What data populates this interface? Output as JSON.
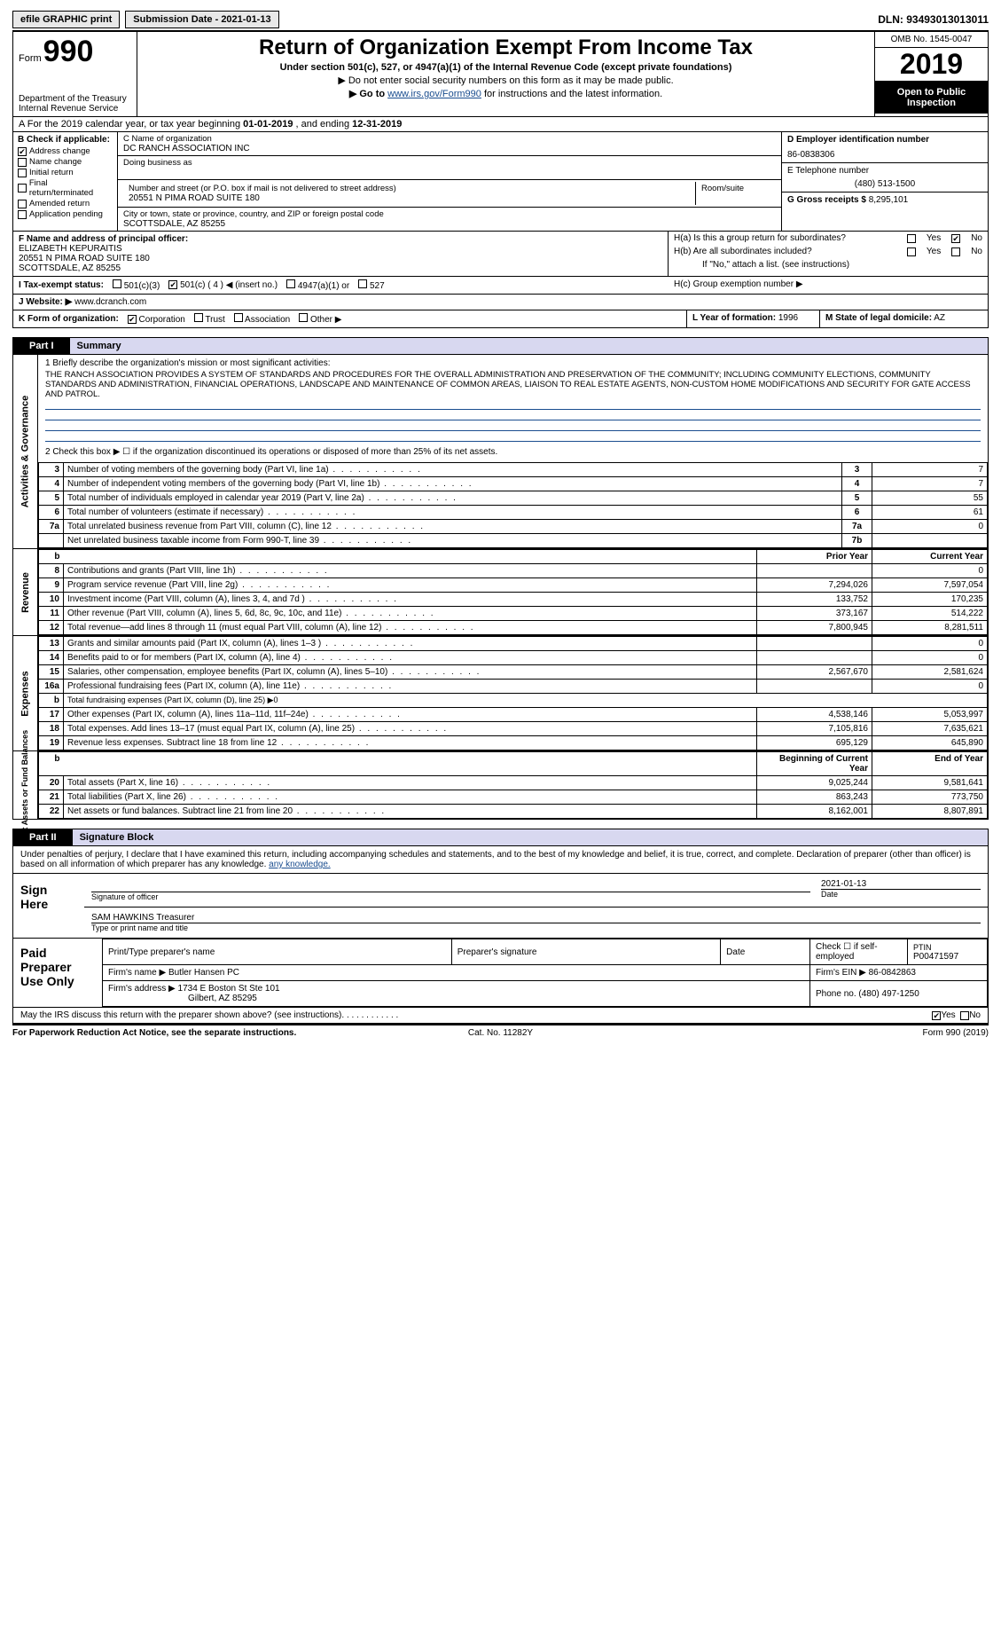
{
  "topbar": {
    "efile": "efile GRAPHIC print",
    "subLbl": "Submission Date - 2021-01-13",
    "dln": "DLN: 93493013013011"
  },
  "hdr": {
    "form": "Form",
    "n990": "990",
    "dept": "Department of the Treasury\nInternal Revenue Service",
    "title": "Return of Organization Exempt From Income Tax",
    "sub1": "Under section 501(c), 527, or 4947(a)(1) of the Internal Revenue Code (except private foundations)",
    "sub2": "▶ Do not enter social security numbers on this form as it may be made public.",
    "sub3p": "▶ Go to ",
    "link": "www.irs.gov/Form990",
    "sub3s": " for instructions and the latest information.",
    "omb": "OMB No. 1545-0047",
    "yr": "2019",
    "otb": "Open to Public Inspection"
  },
  "A": {
    "pre": "A For the 2019 calendar year, or tax year beginning ",
    "b1": "01-01-2019",
    "mid": "  , and ending ",
    "b2": "12-31-2019"
  },
  "B": {
    "lbl": "B Check if applicable:",
    "opts": [
      "Address change",
      "Name change",
      "Initial return",
      "Final return/terminated",
      "Amended return",
      "Application pending"
    ],
    "checked": [
      true,
      false,
      false,
      false,
      false,
      false
    ]
  },
  "C": {
    "nameLbl": "C Name of organization",
    "name": "DC RANCH ASSOCIATION INC",
    "dba": "Doing business as",
    "addrLbl": "Number and street (or P.O. box if mail is not delivered to street address)",
    "addr": "20551 N PIMA ROAD SUITE 180",
    "roomLbl": "Room/suite",
    "cityLbl": "City or town, state or province, country, and ZIP or foreign postal code",
    "city": "SCOTTSDALE, AZ  85255"
  },
  "D": {
    "lbl": "D Employer identification number",
    "val": "86-0838306"
  },
  "E": {
    "lbl": "E Telephone number",
    "val": "(480) 513-1500"
  },
  "G": {
    "lbl": "G Gross receipts $",
    "val": "8,295,101"
  },
  "F": {
    "lbl": "F  Name and address of principal officer:",
    "name": "ELIZABETH KEPURAITIS",
    "l1": "20551 N PIMA ROAD SUITE 180",
    "l2": "SCOTTSDALE, AZ  85255"
  },
  "H": {
    "a": "H(a)  Is this a group return for subordinates?",
    "b": "H(b)  Are all subordinates included?",
    "bnote": "If \"No,\" attach a list. (see instructions)",
    "c": "H(c)  Group exemption number ▶",
    "yes": "Yes",
    "no": "No",
    "aNo": true
  },
  "I": {
    "lbl": "I  Tax-exempt status:",
    "o1": "501(c)(3)",
    "o2": "501(c) ( 4 ) ◀ (insert no.)",
    "o3": "4947(a)(1) or",
    "o4": "527",
    "sel": 1
  },
  "J": {
    "lbl": "J  Website: ▶",
    "val": "www.dcranch.com"
  },
  "K": {
    "lbl": "K Form of organization:",
    "opts": [
      "Corporation",
      "Trust",
      "Association",
      "Other ▶"
    ],
    "sel": 0
  },
  "L": {
    "lbl": "L Year of formation:",
    "val": "1996"
  },
  "M": {
    "lbl": "M State of legal domicile:",
    "val": "AZ"
  },
  "part1": {
    "pn": "Part I",
    "pt": "Summary"
  },
  "ag": {
    "title": "Activities & Governance",
    "q1": "1   Briefly describe the organization's mission or most significant activities:",
    "desc": "THE RANCH ASSOCIATION PROVIDES A SYSTEM OF STANDARDS AND PROCEDURES FOR THE OVERALL ADMINISTRATION AND PRESERVATION OF THE COMMUNITY; INCLUDING COMMUNITY ELECTIONS, COMMUNITY STANDARDS AND ADMINISTRATION, FINANCIAL OPERATIONS, LANDSCAPE AND MAINTENANCE OF COMMON AREAS, LIAISON TO REAL ESTATE AGENTS, NON-CUSTOM HOME MODIFICATIONS AND SECURITY FOR GATE ACCESS AND PATROL.",
    "q2": "2   Check this box ▶ ☐  if the organization discontinued its operations or disposed of more than 25% of its net assets.",
    "rows": [
      {
        "n": "3",
        "t": "Number of voting members of the governing body (Part VI, line 1a)",
        "c": "3",
        "v": "7"
      },
      {
        "n": "4",
        "t": "Number of independent voting members of the governing body (Part VI, line 1b)",
        "c": "4",
        "v": "7"
      },
      {
        "n": "5",
        "t": "Total number of individuals employed in calendar year 2019 (Part V, line 2a)",
        "c": "5",
        "v": "55"
      },
      {
        "n": "6",
        "t": "Total number of volunteers (estimate if necessary)",
        "c": "6",
        "v": "61"
      },
      {
        "n": "7a",
        "t": "Total unrelated business revenue from Part VIII, column (C), line 12",
        "c": "7a",
        "v": "0"
      },
      {
        "n": "",
        "t": "Net unrelated business taxable income from Form 990-T, line 39",
        "c": "7b",
        "v": ""
      }
    ]
  },
  "rev": {
    "title": "Revenue",
    "h1": "Prior Year",
    "h2": "Current Year",
    "rows": [
      {
        "n": "8",
        "t": "Contributions and grants (Part VIII, line 1h)",
        "p": "",
        "c": "0"
      },
      {
        "n": "9",
        "t": "Program service revenue (Part VIII, line 2g)",
        "p": "7,294,026",
        "c": "7,597,054"
      },
      {
        "n": "10",
        "t": "Investment income (Part VIII, column (A), lines 3, 4, and 7d )",
        "p": "133,752",
        "c": "170,235"
      },
      {
        "n": "11",
        "t": "Other revenue (Part VIII, column (A), lines 5, 6d, 8c, 9c, 10c, and 11e)",
        "p": "373,167",
        "c": "514,222"
      },
      {
        "n": "12",
        "t": "Total revenue—add lines 8 through 11 (must equal Part VIII, column (A), line 12)",
        "p": "7,800,945",
        "c": "8,281,511"
      }
    ]
  },
  "exp": {
    "title": "Expenses",
    "rows": [
      {
        "n": "13",
        "t": "Grants and similar amounts paid (Part IX, column (A), lines 1–3 )",
        "p": "",
        "c": "0"
      },
      {
        "n": "14",
        "t": "Benefits paid to or for members (Part IX, column (A), line 4)",
        "p": "",
        "c": "0"
      },
      {
        "n": "15",
        "t": "Salaries, other compensation, employee benefits (Part IX, column (A), lines 5–10)",
        "p": "2,567,670",
        "c": "2,581,624"
      },
      {
        "n": "16a",
        "t": "Professional fundraising fees (Part IX, column (A), line 11e)",
        "p": "",
        "c": "0"
      },
      {
        "n": "b",
        "t": "Total fundraising expenses (Part IX, column (D), line 25) ▶0",
        "p": "—",
        "c": "—"
      },
      {
        "n": "17",
        "t": "Other expenses (Part IX, column (A), lines 11a–11d, 11f–24e)",
        "p": "4,538,146",
        "c": "5,053,997"
      },
      {
        "n": "18",
        "t": "Total expenses. Add lines 13–17 (must equal Part IX, column (A), line 25)",
        "p": "7,105,816",
        "c": "7,635,621"
      },
      {
        "n": "19",
        "t": "Revenue less expenses. Subtract line 18 from line 12",
        "p": "695,129",
        "c": "645,890"
      }
    ]
  },
  "na": {
    "title": "Net Assets or Fund Balances",
    "h1": "Beginning of Current Year",
    "h2": "End of Year",
    "rows": [
      {
        "n": "20",
        "t": "Total assets (Part X, line 16)",
        "p": "9,025,244",
        "c": "9,581,641"
      },
      {
        "n": "21",
        "t": "Total liabilities (Part X, line 26)",
        "p": "863,243",
        "c": "773,750"
      },
      {
        "n": "22",
        "t": "Net assets or fund balances. Subtract line 21 from line 20",
        "p": "8,162,001",
        "c": "8,807,891"
      }
    ]
  },
  "part2": {
    "pn": "Part II",
    "pt": "Signature Block"
  },
  "sig": {
    "txt": "Under penalties of perjury, I declare that I have examined this return, including accompanying schedules and statements, and to the best of my knowledge and belief, it is true, correct, and complete. Declaration of preparer (other than officer) is based on all information of which preparer has any knowledge.",
    "sign": "Sign Here",
    "sigof": "Signature of officer",
    "date": "Date",
    "dv": "2021-01-13",
    "typed": "SAM HAWKINS Treasurer",
    "typedLbl": "Type or print name and title"
  },
  "paid": {
    "lbl": "Paid Preparer Use Only",
    "h": [
      "Print/Type preparer's name",
      "Preparer's signature",
      "Date",
      "",
      "PTIN"
    ],
    "ckLbl": "Check ☐ if self-employed",
    "ptin": "P00471597",
    "firmLbl": "Firm's name    ▶",
    "firm": "Butler Hansen PC",
    "einLbl": "Firm's EIN ▶",
    "ein": "86-0842863",
    "addrLbl": "Firm's address ▶",
    "addr1": "1734 E Boston St Ste 101",
    "addr2": "Gilbert, AZ  85295",
    "phLbl": "Phone no.",
    "ph": "(480) 497-1250"
  },
  "may": {
    "t": "May the IRS discuss this return with the preparer shown above? (see instructions)",
    "yes": "Yes",
    "no": "No",
    "yesChk": true
  },
  "ftr": {
    "l": "For Paperwork Reduction Act Notice, see the separate instructions.",
    "c": "Cat. No. 11282Y",
    "r": "Form 990 (2019)"
  }
}
